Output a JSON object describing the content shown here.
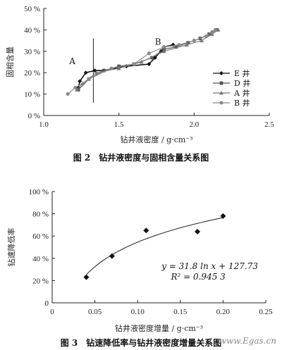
{
  "chart_data": [
    {
      "type": "line",
      "title": "图 2　钻井液密度与固相含量关系图",
      "xlabel": "钻井液密度 / g·cm⁻³",
      "ylabel": "固相含量",
      "xlim": [
        1.0,
        2.5
      ],
      "ylim": [
        0,
        50
      ],
      "x_ticks": [
        "1.0",
        "1.5",
        "2.0",
        "2.5"
      ],
      "y_ticks": [
        "0 %",
        "10 %",
        "20 %",
        "30 %",
        "40 %",
        "50 %"
      ],
      "grid": false,
      "legend_position": "right",
      "annotations": [
        {
          "text": "A",
          "x": 1.19,
          "y": 24
        },
        {
          "text": "B",
          "x": 1.76,
          "y": 33
        }
      ],
      "vline_x": 1.33,
      "series": [
        {
          "name": "E 井",
          "marker": "diamond",
          "color": "#111111",
          "x": [
            1.23,
            1.24,
            1.28,
            1.34,
            1.4,
            1.55,
            1.7,
            1.74,
            1.78,
            1.8,
            1.86
          ],
          "y": [
            13,
            16,
            20,
            21,
            21,
            23,
            24,
            27,
            30,
            32,
            33
          ]
        },
        {
          "name": "D 井",
          "marker": "square",
          "color": "#555555",
          "x": [
            1.23,
            1.3,
            1.4,
            1.5,
            1.6,
            1.72,
            1.8,
            1.88,
            1.96,
            2.04,
            2.1,
            2.15
          ],
          "y": [
            12,
            17,
            21,
            23,
            24,
            27,
            31,
            32,
            34,
            36,
            38,
            40
          ]
        },
        {
          "name": "A 井",
          "marker": "triangle",
          "color": "#777777",
          "x": [
            1.22,
            1.26,
            1.35,
            1.5,
            1.65,
            1.8,
            1.95,
            2.05,
            2.12,
            2.16
          ],
          "y": [
            12,
            15,
            20,
            22,
            25,
            30,
            33,
            35,
            38,
            40
          ]
        },
        {
          "name": "B 井",
          "marker": "circle",
          "color": "#888888",
          "x": [
            1.16,
            1.21,
            1.3,
            1.45,
            1.6,
            1.7,
            1.8,
            1.9,
            2.0,
            2.08,
            2.12,
            2.14
          ],
          "y": [
            10,
            13,
            17,
            22,
            24,
            29,
            32,
            33,
            35,
            37,
            39,
            40
          ]
        }
      ]
    },
    {
      "type": "scatter",
      "title": "图 3　钻速降低率与钻井液密度增量关系图",
      "xlabel": "钻井液密度增量 / g·cm⁻³",
      "ylabel": "钻速降低率",
      "xlim": [
        0,
        0.25
      ],
      "ylim": [
        0,
        100
      ],
      "x_ticks": [
        "0",
        "0.05",
        "0.10",
        "0.15",
        "0.20",
        "0.25"
      ],
      "y_ticks": [
        "0",
        "20 %",
        "40 %",
        "60 %",
        "80 %",
        "100 %"
      ],
      "grid": false,
      "series": [
        {
          "marker": "diamond",
          "color": "#111111",
          "x": [
            0.04,
            0.07,
            0.11,
            0.17,
            0.2
          ],
          "y": [
            23,
            42,
            65,
            64,
            78
          ]
        }
      ],
      "trendline": {
        "type": "log",
        "a": 31.8,
        "b": 127.73,
        "equation": "y = 31.8 ln x + 127.73",
        "r2": "R² = 0.945 3",
        "x_range": [
          0.04,
          0.2
        ]
      }
    }
  ],
  "watermark": "www.Egas.cn"
}
